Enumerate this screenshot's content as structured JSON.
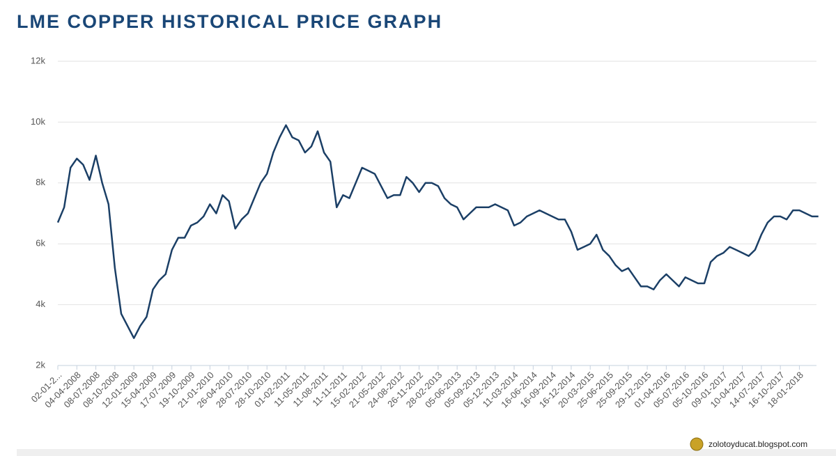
{
  "chart_data": {
    "type": "line",
    "title": "LME COPPER HISTORICAL PRICE GRAPH",
    "footer": "zolotoyducat.blogspot.com",
    "categories": [
      "02-01-2...",
      null,
      null,
      "04-04-2008",
      null,
      null,
      "08-07-2008",
      null,
      null,
      "08-10-2008",
      null,
      null,
      "12-01-2009",
      null,
      null,
      "15-04-2009",
      null,
      null,
      "17-07-2009",
      null,
      null,
      "19-10-2009",
      null,
      null,
      "21-01-2010",
      null,
      null,
      "26-04-2010",
      null,
      null,
      "28-07-2010",
      null,
      null,
      "28-10-2010",
      null,
      null,
      "01-02-2011",
      null,
      null,
      "11-05-2011",
      null,
      null,
      "11-08-2011",
      null,
      null,
      "11-11-2011",
      null,
      null,
      "15-02-2012",
      null,
      null,
      "21-05-2012",
      null,
      null,
      "24-08-2012",
      null,
      null,
      "26-11-2012",
      null,
      null,
      "28-02-2013",
      null,
      null,
      "05-06-2013",
      null,
      null,
      "05-09-2013",
      null,
      null,
      "05-12-2013",
      null,
      null,
      "11-03-2014",
      null,
      null,
      "16-06-2014",
      null,
      null,
      "16-09-2014",
      null,
      null,
      "16-12-2014",
      null,
      null,
      "20-03-2015",
      null,
      null,
      "25-06-2015",
      null,
      null,
      "25-09-2015",
      null,
      null,
      "29-12-2015",
      null,
      null,
      "01-04-2016",
      null,
      null,
      "05-07-2016",
      null,
      null,
      "05-10-2016",
      null,
      null,
      "09-01-2017",
      null,
      null,
      "10-04-2017",
      null,
      null,
      "14-07-2017",
      null,
      null,
      "16-10-2017",
      null,
      null,
      "18-01-2018",
      null,
      null,
      null
    ],
    "values": [
      6700,
      7200,
      8500,
      8800,
      8600,
      8100,
      8900,
      8000,
      7300,
      5200,
      3700,
      3300,
      2900,
      3300,
      3600,
      4500,
      4800,
      5000,
      5800,
      6200,
      6200,
      6600,
      6700,
      6900,
      7300,
      7000,
      7600,
      7400,
      6500,
      6800,
      7000,
      7500,
      8000,
      8300,
      9000,
      9500,
      9900,
      9500,
      9400,
      9000,
      9200,
      9700,
      9000,
      8700,
      7200,
      7600,
      7500,
      8000,
      8500,
      8400,
      8300,
      7900,
      7500,
      7600,
      7600,
      8200,
      8000,
      7700,
      8000,
      8000,
      7900,
      7500,
      7300,
      7200,
      6800,
      7000,
      7200,
      7200,
      7200,
      7300,
      7200,
      7100,
      6600,
      6700,
      6900,
      7000,
      7100,
      7000,
      6900,
      6800,
      6800,
      6400,
      5800,
      5900,
      6000,
      6300,
      5800,
      5600,
      5300,
      5100,
      5200,
      4900,
      4600,
      4600,
      4500,
      4800,
      5000,
      4800,
      4600,
      4900,
      4800,
      4700,
      4700,
      5400,
      5600,
      5700,
      5900,
      5800,
      5700,
      5600,
      5800,
      6300,
      6700,
      6900,
      6900,
      6800,
      7100,
      7100,
      7000,
      6900,
      6900
    ],
    "color": "#1b3f66",
    "ylim": [
      2000,
      12000
    ],
    "yticks": [
      {
        "value": 2000,
        "label": "2k"
      },
      {
        "value": 4000,
        "label": "4k"
      },
      {
        "value": 6000,
        "label": "6k"
      },
      {
        "value": 8000,
        "label": "8k"
      },
      {
        "value": 10000,
        "label": "10k"
      },
      {
        "value": 12000,
        "label": "12k"
      }
    ],
    "grid": true
  }
}
